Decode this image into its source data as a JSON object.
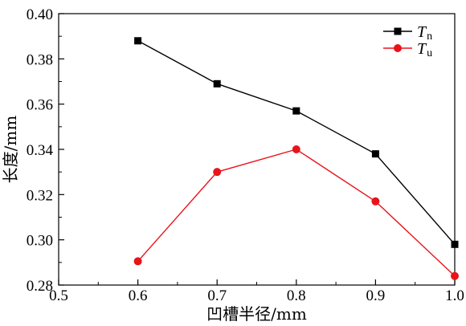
{
  "chart_data": {
    "type": "line",
    "x": [
      0.6,
      0.7,
      0.8,
      0.9,
      1.0
    ],
    "series": [
      {
        "name_main": "T",
        "name_sub": "n",
        "color": "#000000",
        "marker": "square",
        "values": [
          0.388,
          0.369,
          0.357,
          0.338,
          0.298
        ]
      },
      {
        "name_main": "T",
        "name_sub": "u",
        "color": "#e8141b",
        "marker": "circle",
        "values": [
          0.2905,
          0.33,
          0.34,
          0.317,
          0.284
        ]
      }
    ],
    "xlabel": "凹槽半径/mm",
    "ylabel": "长度/mm",
    "xlim": [
      0.5,
      1.0
    ],
    "ylim": [
      0.28,
      0.4
    ],
    "xticks": [
      "0.5",
      "0.6",
      "0.7",
      "0.8",
      "0.9",
      "1.0"
    ],
    "yticks": [
      "0.28",
      "0.30",
      "0.32",
      "0.34",
      "0.36",
      "0.38",
      "0.40"
    ],
    "legend_position": "top-right",
    "grid": false
  }
}
